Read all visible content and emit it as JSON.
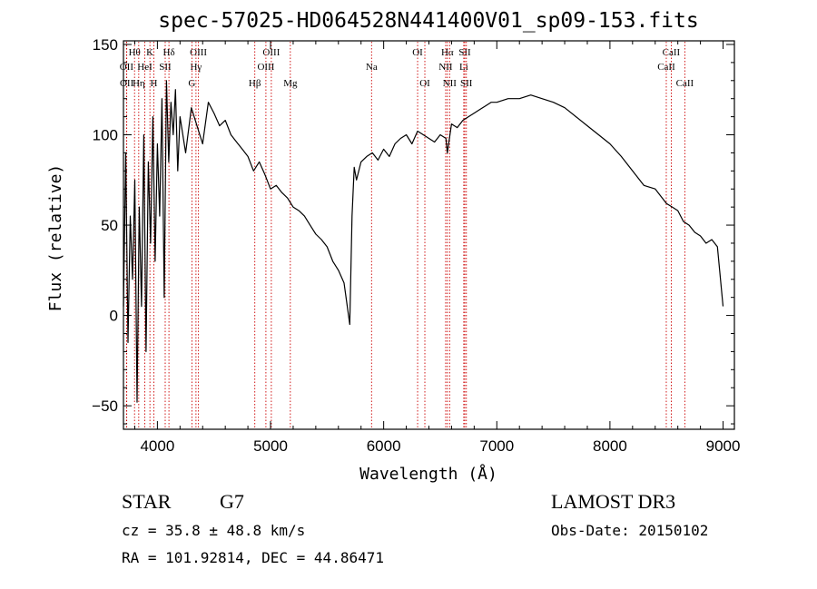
{
  "chart_data": {
    "type": "line",
    "title": "spec-57025-HD064528N441400V01_sp09-153.fits",
    "xlabel": "Wavelength (Å)",
    "ylabel": "Flux (relative)",
    "xlim": [
      3700,
      9100
    ],
    "ylim": [
      -63,
      152
    ],
    "xticks": [
      4000,
      5000,
      6000,
      7000,
      8000,
      9000
    ],
    "yticks": [
      -50,
      0,
      50,
      100,
      150
    ],
    "series": [
      {
        "color": "#000000",
        "x": [
          3700,
          3720,
          3740,
          3760,
          3780,
          3800,
          3820,
          3840,
          3860,
          3880,
          3900,
          3920,
          3940,
          3960,
          3980,
          4000,
          4020,
          4040,
          4060,
          4080,
          4100,
          4120,
          4140,
          4160,
          4180,
          4200,
          4250,
          4300,
          4350,
          4400,
          4450,
          4500,
          4550,
          4600,
          4650,
          4700,
          4750,
          4800,
          4850,
          4900,
          4950,
          5000,
          5050,
          5100,
          5150,
          5200,
          5250,
          5300,
          5350,
          5400,
          5450,
          5500,
          5550,
          5600,
          5650,
          5700,
          5720,
          5740,
          5760,
          5800,
          5850,
          5900,
          5950,
          6000,
          6050,
          6100,
          6150,
          6200,
          6250,
          6300,
          6350,
          6400,
          6450,
          6500,
          6550,
          6563,
          6600,
          6650,
          6700,
          6750,
          6800,
          6850,
          6900,
          6950,
          7000,
          7100,
          7200,
          7300,
          7400,
          7500,
          7600,
          7700,
          7800,
          7900,
          8000,
          8100,
          8200,
          8300,
          8400,
          8500,
          8550,
          8600,
          8650,
          8700,
          8750,
          8800,
          8850,
          8900,
          8950,
          9000
        ],
        "y": [
          5,
          90,
          -15,
          55,
          20,
          75,
          -48,
          60,
          5,
          100,
          -20,
          85,
          40,
          110,
          30,
          95,
          55,
          120,
          10,
          130,
          85,
          118,
          100,
          125,
          80,
          110,
          90,
          115,
          105,
          95,
          118,
          112,
          105,
          108,
          100,
          96,
          92,
          88,
          80,
          85,
          78,
          70,
          72,
          68,
          65,
          60,
          58,
          55,
          50,
          45,
          42,
          38,
          30,
          25,
          18,
          -5,
          55,
          82,
          75,
          85,
          88,
          90,
          86,
          92,
          88,
          95,
          98,
          100,
          95,
          102,
          100,
          98,
          96,
          100,
          98,
          90,
          106,
          104,
          108,
          110,
          112,
          114,
          116,
          118,
          118,
          120,
          120,
          122,
          120,
          118,
          115,
          110,
          105,
          100,
          95,
          88,
          80,
          72,
          70,
          62,
          60,
          58,
          52,
          50,
          46,
          44,
          40,
          42,
          38,
          5
        ]
      }
    ],
    "line_markers": [
      {
        "label": "Hθ",
        "x": 3798,
        "row": 1
      },
      {
        "label": "OII",
        "x": 3727,
        "row": 2
      },
      {
        "label": "OII",
        "x": 3729,
        "row": 3
      },
      {
        "label": "Hη",
        "x": 3835,
        "row": 3
      },
      {
        "label": "K",
        "x": 3934,
        "row": 1
      },
      {
        "label": "HeI",
        "x": 3889,
        "row": 2
      },
      {
        "label": "H",
        "x": 3969,
        "row": 3
      },
      {
        "label": "SII",
        "x": 4069,
        "row": 2
      },
      {
        "label": "Hδ",
        "x": 4102,
        "row": 1
      },
      {
        "label": "OIII",
        "x": 4363,
        "row": 1
      },
      {
        "label": "Hγ",
        "x": 4341,
        "row": 2
      },
      {
        "label": "G",
        "x": 4305,
        "row": 3
      },
      {
        "label": "Hβ",
        "x": 4861,
        "row": 3
      },
      {
        "label": "OIII",
        "x": 5007,
        "row": 1
      },
      {
        "label": "OIII",
        "x": 4959,
        "row": 2
      },
      {
        "label": "Mg",
        "x": 5175,
        "row": 3
      },
      {
        "label": "Na",
        "x": 5893,
        "row": 2
      },
      {
        "label": "OI",
        "x": 6300,
        "row": 1
      },
      {
        "label": "OI",
        "x": 6364,
        "row": 3
      },
      {
        "label": "Hα",
        "x": 6563,
        "row": 1
      },
      {
        "label": "NII",
        "x": 6548,
        "row": 2
      },
      {
        "label": "NII",
        "x": 6583,
        "row": 3
      },
      {
        "label": "SII",
        "x": 6717,
        "row": 1
      },
      {
        "label": "Li",
        "x": 6708,
        "row": 2
      },
      {
        "label": "SII",
        "x": 6731,
        "row": 3
      },
      {
        "label": "CaII",
        "x": 8542,
        "row": 1
      },
      {
        "label": "CaII",
        "x": 8498,
        "row": 2
      },
      {
        "label": "CaII",
        "x": 8662,
        "row": 3
      }
    ]
  },
  "info": {
    "object_class": "STAR",
    "subclass": "G7",
    "survey": "LAMOST DR3",
    "cz": "cz = 35.8 ± 48.8 km/s",
    "obs_date": "Obs-Date: 20150102",
    "radec": "RA = 101.92814, DEC =  44.86471"
  }
}
